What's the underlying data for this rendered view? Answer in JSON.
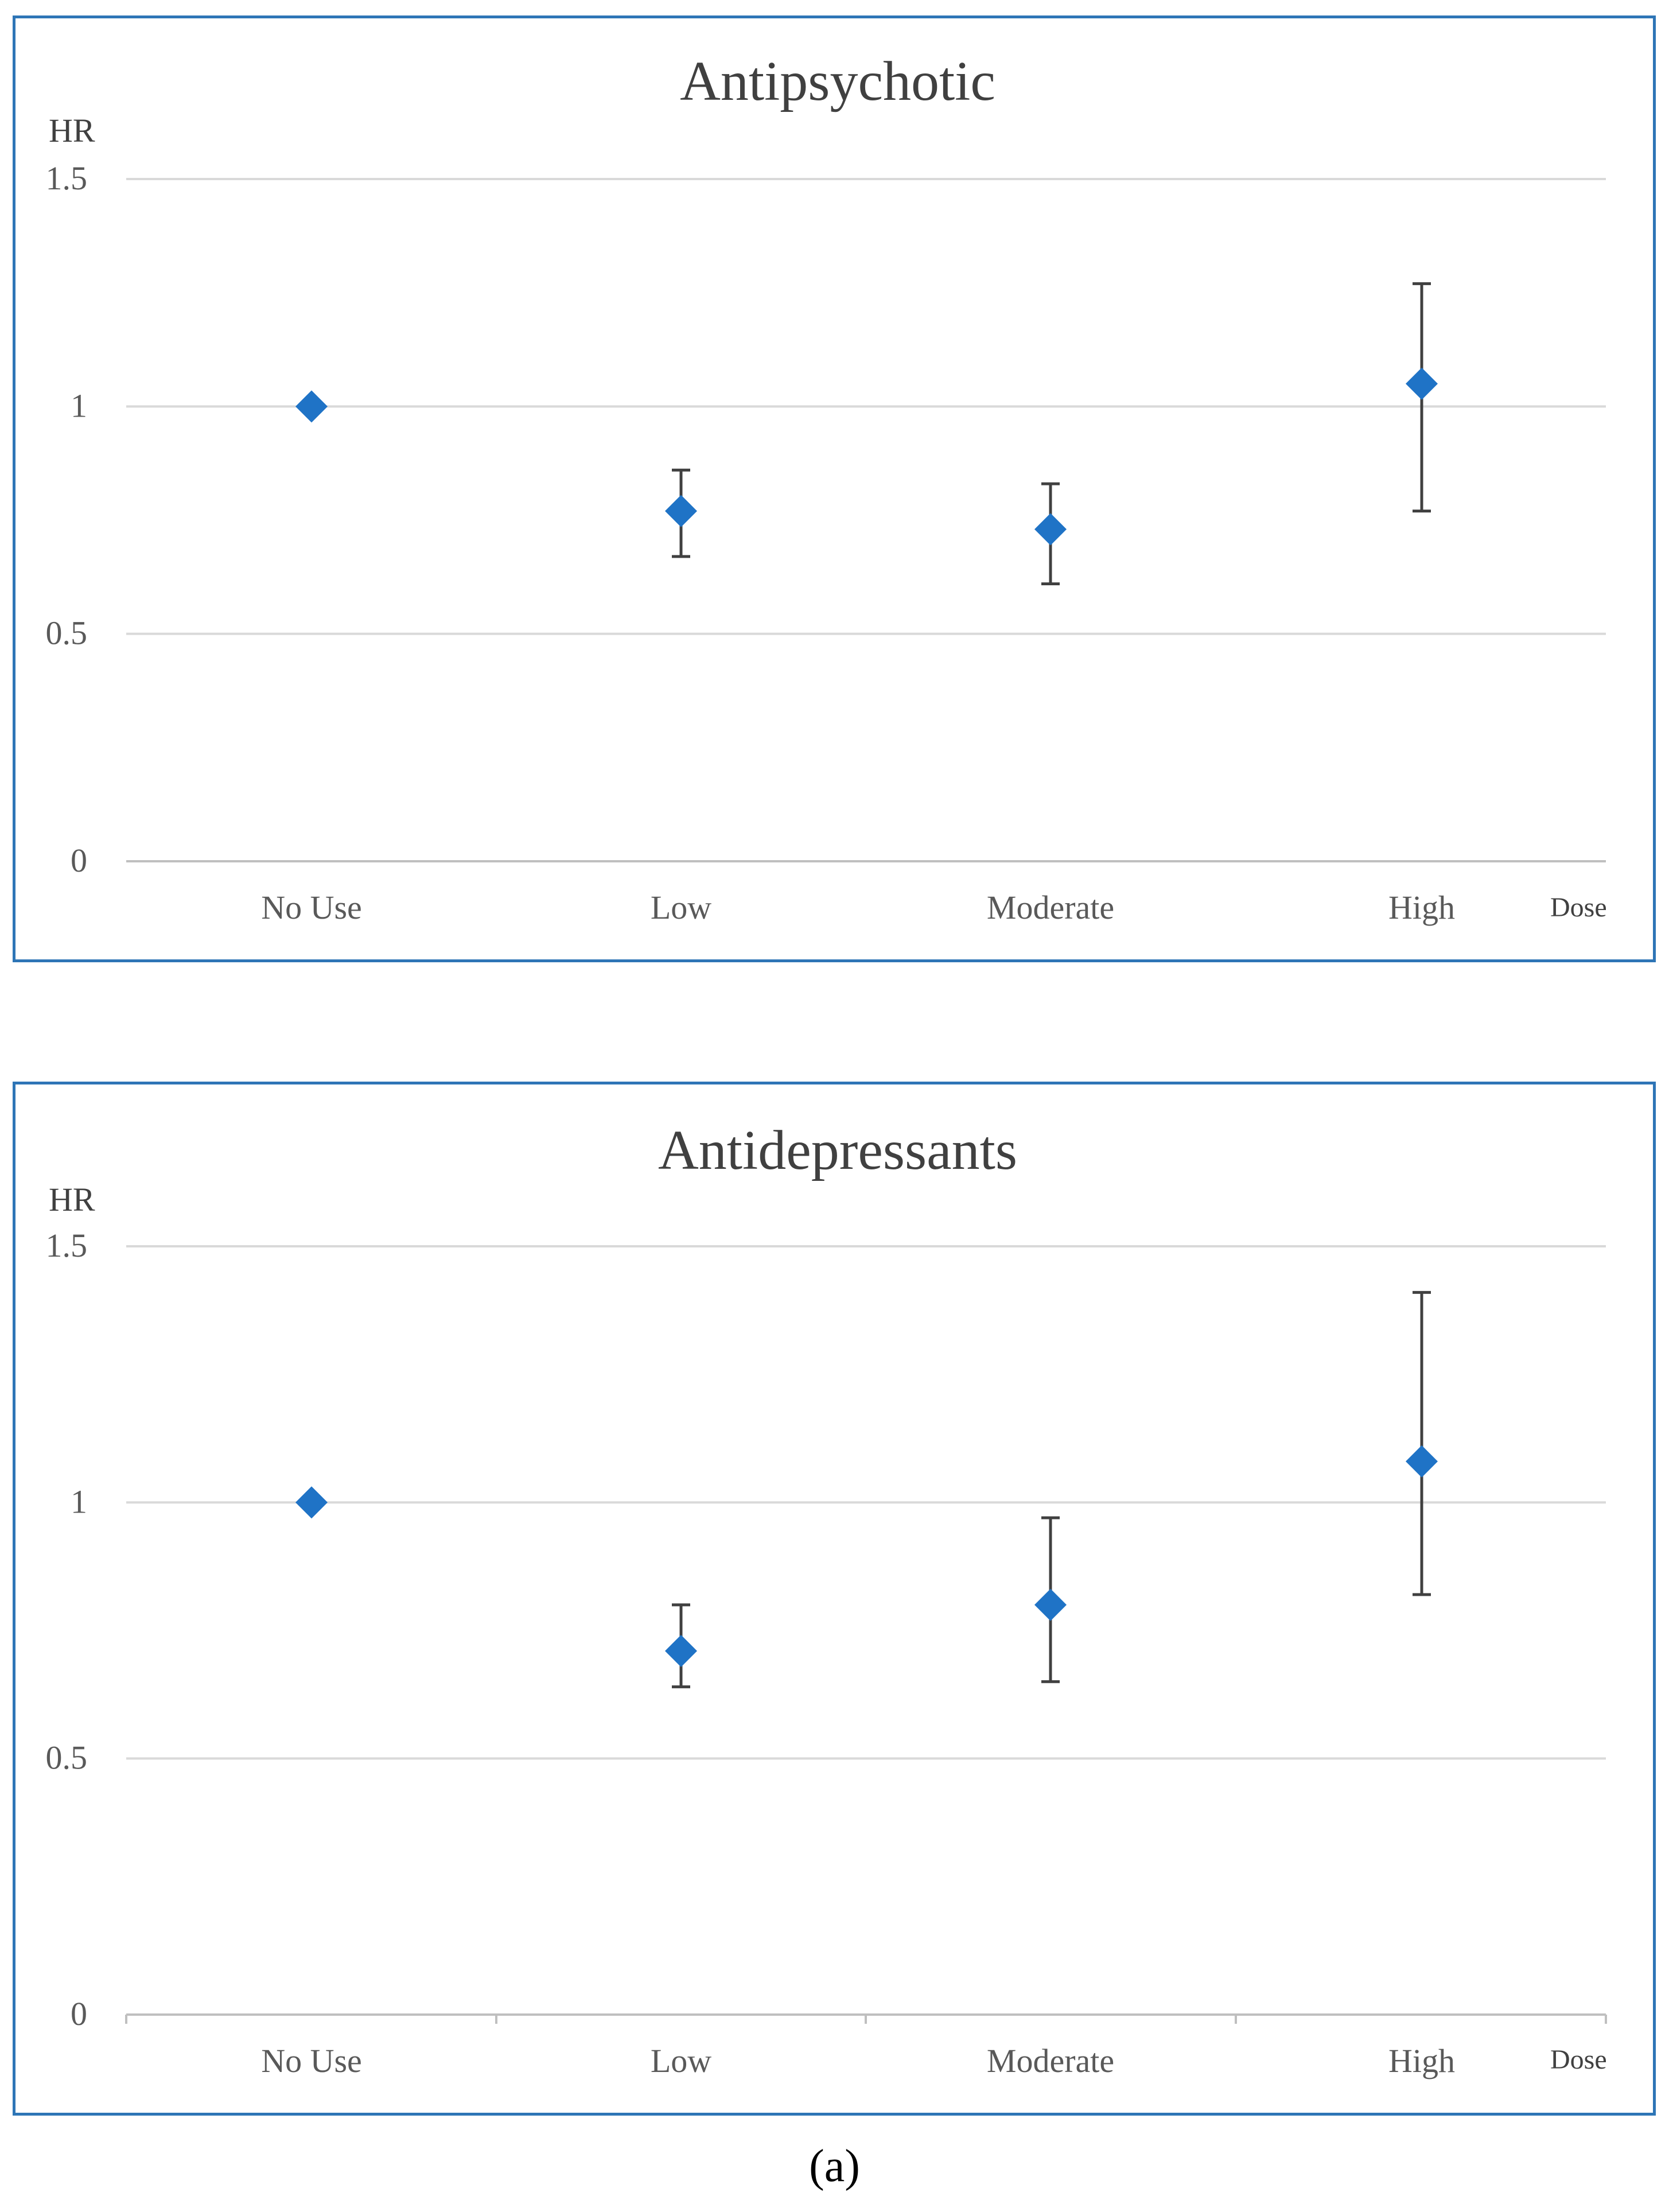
{
  "chart_data": [
    {
      "type": "scatter",
      "title": "Antipsychotic",
      "ylabel": "HR",
      "xlabel": "Dose",
      "categories": [
        "No Use",
        "Low",
        "Moderate",
        "High"
      ],
      "ylim": [
        0,
        1.5
      ],
      "yticks": [
        "0",
        "0.5",
        "1",
        "1.5"
      ],
      "grid": true,
      "series": [
        {
          "name": "HR",
          "values": [
            1.0,
            0.77,
            0.73,
            1.05
          ],
          "ci_lower": [
            null,
            0.67,
            0.61,
            0.77
          ],
          "ci_upper": [
            null,
            0.86,
            0.83,
            1.27
          ]
        }
      ]
    },
    {
      "type": "scatter",
      "title": "Antidepressants",
      "ylabel": "HR",
      "xlabel": "Dose",
      "categories": [
        "No Use",
        "Low",
        "Moderate",
        "High"
      ],
      "ylim": [
        0,
        1.5
      ],
      "yticks": [
        "0",
        "0.5",
        "1",
        "1.5"
      ],
      "grid": true,
      "series": [
        {
          "name": "HR",
          "values": [
            1.0,
            0.71,
            0.8,
            1.08
          ],
          "ci_lower": [
            null,
            0.64,
            0.65,
            0.82
          ],
          "ci_upper": [
            null,
            0.8,
            0.97,
            1.41
          ]
        }
      ]
    }
  ],
  "caption": "(a)",
  "colors": {
    "marker": "#1f73c6",
    "border": "#2e75b6",
    "grid": "#d9d9d9",
    "errorbar": "#404040"
  }
}
